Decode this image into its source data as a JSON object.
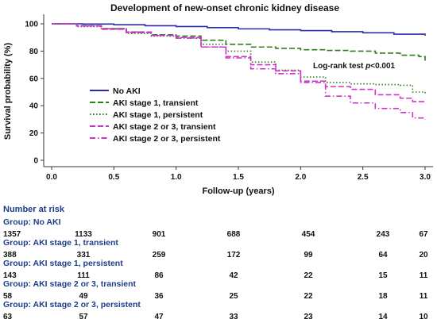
{
  "chart_data": {
    "type": "line",
    "title": "Development of new-onset chronic kidney disease",
    "xlabel": "Follow-up (years)",
    "ylabel": "Survival probability (%)",
    "xlim": [
      0,
      3
    ],
    "ylim": [
      0,
      100
    ],
    "x_ticks": [
      "0.0",
      "0.5",
      "1.0",
      "1.5",
      "2.0",
      "2.5",
      "3.0"
    ],
    "y_ticks": [
      "0",
      "20",
      "40",
      "60",
      "80",
      "100"
    ],
    "grid": false,
    "legend_position": "center-left",
    "annotation": {
      "prefix": "Log-rank test ",
      "italic": "p",
      "suffix": "<0.001"
    },
    "series": [
      {
        "name": "No AKI",
        "color": "#2b2ba8",
        "dash": "solid",
        "points": [
          [
            0,
            100
          ],
          [
            0.25,
            99.8
          ],
          [
            0.5,
            99.3
          ],
          [
            0.75,
            98.6
          ],
          [
            1.0,
            98
          ],
          [
            1.25,
            97.2
          ],
          [
            1.5,
            96.3
          ],
          [
            1.75,
            95.6
          ],
          [
            2.0,
            95
          ],
          [
            2.25,
            94.2
          ],
          [
            2.5,
            93.4
          ],
          [
            2.75,
            92.4
          ],
          [
            3.0,
            91.3
          ]
        ]
      },
      {
        "name": "AKI stage 1, transient",
        "color": "#2e7d1e",
        "dash": "dashed",
        "points": [
          [
            0,
            100
          ],
          [
            0.2,
            98.5
          ],
          [
            0.4,
            96.5
          ],
          [
            0.6,
            94
          ],
          [
            0.8,
            92
          ],
          [
            1.0,
            91
          ],
          [
            1.2,
            88
          ],
          [
            1.4,
            85
          ],
          [
            1.6,
            83
          ],
          [
            1.8,
            82
          ],
          [
            2.0,
            81
          ],
          [
            2.2,
            80.5
          ],
          [
            2.4,
            80
          ],
          [
            2.6,
            78.5
          ],
          [
            2.8,
            77
          ],
          [
            2.95,
            76
          ],
          [
            3.0,
            73
          ]
        ]
      },
      {
        "name": "AKI stage 1, persistent",
        "color": "#2e7d1e",
        "dash": "dotted",
        "points": [
          [
            0,
            100
          ],
          [
            0.2,
            98
          ],
          [
            0.4,
            96
          ],
          [
            0.6,
            93
          ],
          [
            0.8,
            91
          ],
          [
            1.0,
            89.5
          ],
          [
            1.2,
            85
          ],
          [
            1.4,
            80
          ],
          [
            1.6,
            72
          ],
          [
            1.8,
            66
          ],
          [
            2.0,
            61
          ],
          [
            2.2,
            57
          ],
          [
            2.4,
            56
          ],
          [
            2.6,
            55.5
          ],
          [
            2.8,
            55
          ],
          [
            2.9,
            50
          ],
          [
            3.0,
            48
          ]
        ]
      },
      {
        "name": "AKI stage 2 or 3, transient",
        "color": "#cc33cc",
        "dash": "dashed",
        "points": [
          [
            0,
            100
          ],
          [
            0.2,
            98.5
          ],
          [
            0.4,
            96
          ],
          [
            0.6,
            93.5
          ],
          [
            0.8,
            91.5
          ],
          [
            1.0,
            90
          ],
          [
            1.2,
            83
          ],
          [
            1.4,
            76
          ],
          [
            1.6,
            70
          ],
          [
            1.8,
            65.5
          ],
          [
            2.0,
            58
          ],
          [
            2.2,
            54
          ],
          [
            2.4,
            52
          ],
          [
            2.6,
            48
          ],
          [
            2.8,
            45.5
          ],
          [
            2.9,
            43
          ],
          [
            3.0,
            43
          ]
        ]
      },
      {
        "name": "AKI stage 2 or 3, persistent",
        "color": "#cc33cc",
        "dash": "dashdot",
        "points": [
          [
            0,
            100
          ],
          [
            0.2,
            98.5
          ],
          [
            0.4,
            96.5
          ],
          [
            0.6,
            94
          ],
          [
            0.8,
            91.5
          ],
          [
            1.0,
            89.5
          ],
          [
            1.2,
            83
          ],
          [
            1.4,
            75
          ],
          [
            1.6,
            67
          ],
          [
            1.8,
            63.5
          ],
          [
            2.0,
            57
          ],
          [
            2.2,
            47
          ],
          [
            2.4,
            42
          ],
          [
            2.6,
            38
          ],
          [
            2.8,
            35
          ],
          [
            2.9,
            31
          ],
          [
            3.0,
            30
          ]
        ]
      }
    ]
  },
  "risk_table": {
    "header": "Number at risk",
    "groups": [
      {
        "label": "Group: No AKI",
        "values": [
          "1357",
          "1133",
          "901",
          "688",
          "454",
          "243",
          "67"
        ]
      },
      {
        "label": "Group: AKI stage 1, transient",
        "values": [
          "388",
          "331",
          "259",
          "172",
          "99",
          "64",
          "20"
        ]
      },
      {
        "label": "Group: AKI stage 1, persistent",
        "values": [
          "143",
          "111",
          "86",
          "42",
          "22",
          "15",
          "11"
        ]
      },
      {
        "label": "Group: AKI stage 2 or 3, transient",
        "values": [
          "58",
          "49",
          "36",
          "25",
          "22",
          "18",
          "11"
        ]
      },
      {
        "label": "Group: AKI stage 2 or 3, persistent",
        "values": [
          "63",
          "57",
          "47",
          "33",
          "23",
          "14",
          "10"
        ]
      }
    ]
  }
}
